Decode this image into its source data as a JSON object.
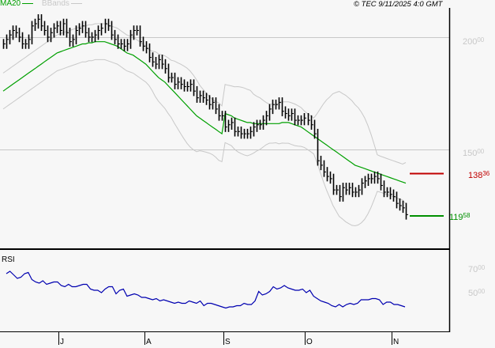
{
  "header": {
    "legend_ma": "MA20",
    "legend_bb": "BBands",
    "copyright": "© TEC 9/11/2025 4:0 GMT"
  },
  "colors": {
    "background": "#f7f7f7",
    "price_bars": "#000000",
    "ma20": "#00a000",
    "bbands": "#c8c8c8",
    "resistance": "#c00000",
    "support": "#009000",
    "rsi": "#0000b0",
    "gridline": "#c8c8c8"
  },
  "axis": {
    "price_ticks": [
      {
        "int": "200",
        "dec": "00",
        "value": 200
      },
      {
        "int": "150",
        "dec": "00",
        "value": 150
      }
    ],
    "rsi_ticks": [
      {
        "int": "70",
        "dec": "00",
        "value": 70
      },
      {
        "int": "50",
        "dec": "00",
        "value": 50
      }
    ],
    "months": [
      "J",
      "A",
      "S",
      "O",
      "N"
    ],
    "rsi_label": "RSI"
  },
  "levels": {
    "resistance": {
      "int": "138",
      "dec": "36",
      "value": 138.36
    },
    "support": {
      "int": "119",
      "dec": "58",
      "value": 119.58
    }
  },
  "chart_data": {
    "type": "ohlc",
    "title": "",
    "indicators": [
      "MA20",
      "BBands",
      "RSI"
    ],
    "x_months": [
      "J",
      "A",
      "S",
      "O",
      "N"
    ],
    "price_ylim": [
      115,
      215
    ],
    "price_ticks": [
      150,
      200
    ],
    "rsi_ticks": [
      50,
      70
    ],
    "grid": "horizontal at 150 and 200",
    "levels": {
      "resistance": 138.36,
      "support": 119.58
    },
    "close": [
      197,
      199,
      201,
      203,
      202,
      200,
      197,
      197,
      199,
      205,
      206,
      208,
      205,
      203,
      200,
      202,
      204,
      205,
      203,
      206,
      202,
      198,
      199,
      203,
      204,
      205,
      202,
      200,
      200,
      201,
      203,
      204,
      206,
      205,
      201,
      199,
      197,
      197,
      196,
      197,
      201,
      203,
      203,
      198,
      196,
      195,
      191,
      189,
      188,
      190,
      188,
      186,
      182,
      182,
      179,
      180,
      179,
      178,
      178,
      179,
      176,
      173,
      174,
      173,
      172,
      170,
      171,
      168,
      165,
      165,
      160,
      161,
      162,
      158,
      158,
      157,
      157,
      157,
      158,
      160,
      161,
      161,
      163,
      165,
      168,
      170,
      170,
      171,
      167,
      166,
      165,
      166,
      163,
      163,
      163,
      164,
      163,
      161,
      157,
      145,
      143,
      140,
      138,
      137,
      132,
      132,
      129,
      133,
      132,
      133,
      131,
      131,
      132,
      135,
      136,
      137,
      137,
      138,
      137,
      134,
      131,
      131,
      130,
      129,
      126,
      125,
      124,
      121
    ],
    "ma20": [
      176,
      177,
      178,
      179,
      180,
      181,
      182,
      183,
      184,
      185,
      186,
      187,
      188,
      189,
      190,
      191,
      192,
      193,
      193.5,
      194,
      194.5,
      195,
      195.5,
      196,
      196.5,
      197,
      197,
      197.5,
      197.5,
      198,
      198,
      198,
      198,
      197.5,
      197,
      196.5,
      196,
      195,
      194,
      193,
      192.5,
      192,
      191,
      190,
      189,
      188,
      186.5,
      185,
      183.5,
      182,
      181,
      180,
      178.5,
      177,
      175.5,
      174,
      172.5,
      171,
      169.5,
      168,
      166.5,
      165,
      164,
      163,
      162,
      161,
      160,
      159,
      158,
      157,
      166,
      165.5,
      165,
      164,
      163.5,
      163,
      162.5,
      162,
      162,
      161.5,
      161.5,
      161.5,
      161.5,
      161.5,
      161.5,
      161.5,
      161.5,
      161.5,
      162,
      162,
      162,
      161.5,
      161,
      160.5,
      160,
      159,
      158,
      157,
      156,
      155,
      154,
      153,
      152,
      151,
      150,
      149,
      148,
      147,
      146,
      145,
      144,
      143,
      142.5,
      142,
      141.5,
      141,
      140.5,
      140,
      139.5,
      139,
      138.5,
      138,
      137.5,
      137,
      136.5,
      136,
      135.5,
      135
    ],
    "rsi": [
      66,
      68,
      65,
      62,
      63,
      66,
      67,
      61,
      59,
      58,
      60,
      57,
      58,
      59,
      59,
      56,
      55,
      57,
      55,
      55,
      56,
      57,
      57,
      53,
      52,
      52,
      50,
      53,
      55,
      55,
      49,
      52,
      53,
      47,
      48,
      49,
      48,
      46,
      46,
      45,
      44,
      45,
      43,
      44,
      43,
      42,
      41,
      42,
      41,
      41,
      43,
      42,
      41,
      43,
      39,
      41,
      41,
      40,
      39,
      38,
      37,
      38,
      38,
      39,
      39,
      41,
      40,
      40,
      43,
      51,
      48,
      49,
      51,
      55,
      53,
      54,
      56,
      54,
      53,
      52,
      52,
      53,
      50,
      52,
      47,
      45,
      43,
      42,
      41,
      39,
      38,
      40,
      38,
      40,
      41,
      40,
      41,
      44,
      44,
      44,
      45,
      45,
      44,
      40,
      42,
      42,
      40,
      40,
      39,
      38
    ],
    "rsi_ylim": [
      25,
      85
    ]
  }
}
